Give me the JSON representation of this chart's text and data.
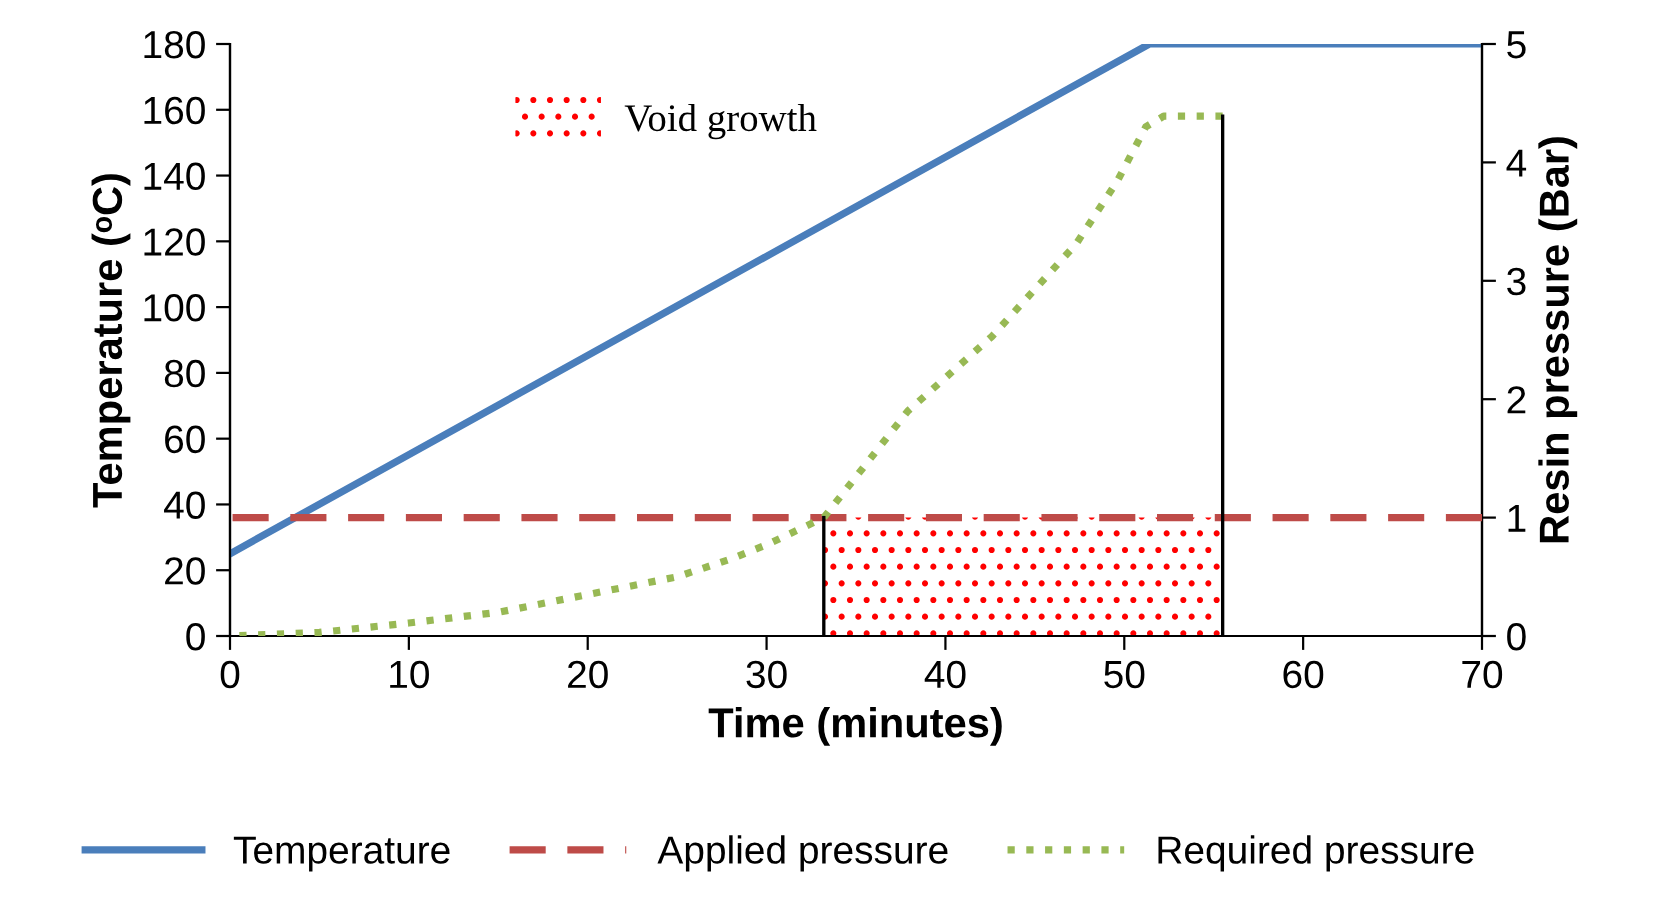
{
  "chart_data": {
    "type": "line",
    "xlabel": "Time (minutes)",
    "ylabel": "Temperature (ᵒC)",
    "y2label": "Resin pressure (Bar)",
    "xlim": [
      0,
      70
    ],
    "xticks": [
      0,
      10,
      20,
      30,
      40,
      50,
      60,
      70
    ],
    "ylim": [
      0,
      180
    ],
    "yticks": [
      0,
      20,
      40,
      60,
      80,
      100,
      120,
      140,
      160,
      180
    ],
    "y2lim": [
      0,
      5
    ],
    "y2ticks": [
      0,
      1,
      2,
      3,
      4,
      5
    ],
    "grid": false,
    "legend": "bottom",
    "marker": "none",
    "series": [
      {
        "name": "Temperature",
        "color": "#4a7ebb",
        "line_style": "solid",
        "x": [
          0,
          51.4,
          70
        ],
        "values": [
          25,
          180,
          180
        ]
      },
      {
        "name": "Applied pressure",
        "color": "#be4b48",
        "line_style": "dashed",
        "axis": "y2",
        "x": [
          0,
          70
        ],
        "values": [
          1,
          1
        ]
      },
      {
        "name": "Required pressure",
        "color": "#98b954",
        "line_style": "dotted",
        "axis": "y2",
        "x": [
          0,
          5,
          10,
          15,
          20,
          25,
          28,
          30,
          33.2,
          37.9,
          42.6,
          47.3,
          49.6,
          51.2,
          52.2,
          55.5
        ],
        "values": [
          0,
          0.03,
          0.11,
          0.2,
          0.35,
          0.5,
          0.65,
          0.77,
          1,
          1.9,
          2.53,
          3.31,
          3.84,
          4.3,
          4.39,
          4.39
        ]
      },
      {
        "color": "#000000",
        "line_style": "solid",
        "axis": "y2",
        "x": [
          33.2,
          33.2
        ],
        "values": [
          0,
          1
        ]
      },
      {
        "color": "#000000",
        "line_style": "solid",
        "axis": "y2",
        "x": [
          55.5,
          55.5
        ],
        "values": [
          0,
          4.39
        ]
      }
    ],
    "bands": [
      {
        "axis": "x",
        "from": 33.2,
        "to": 55.5,
        "label": "Void growth",
        "color": "#ff0000"
      }
    ]
  }
}
